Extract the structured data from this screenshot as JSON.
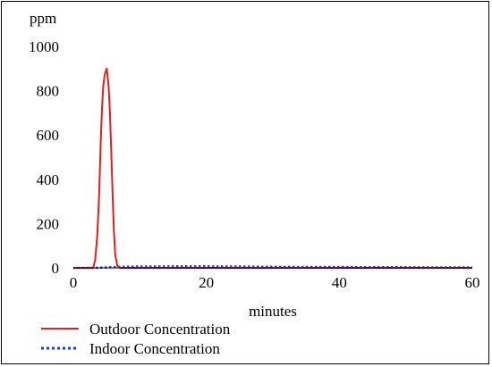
{
  "chart_data": {
    "type": "line",
    "title": "",
    "xlabel": "minutes",
    "ylabel": "ppm",
    "xlim": [
      0,
      60
    ],
    "ylim": [
      0,
      1000
    ],
    "x_ticks": [
      "0",
      "20",
      "40",
      "60"
    ],
    "y_ticks": [
      "0",
      "200",
      "400",
      "600",
      "800",
      "1000"
    ],
    "grid": false,
    "legend_position": "bottom-left",
    "series": [
      {
        "name": "Outdoor Concentration",
        "color": "#e0201b",
        "style": "solid",
        "x": [
          0,
          3,
          3.3,
          3.6,
          3.9,
          4.1,
          4.3,
          4.5,
          4.7,
          4.9,
          5.0,
          5.1,
          5.3,
          5.5,
          5.7,
          5.9,
          6.1,
          6.3,
          6.6,
          7,
          10,
          20,
          30,
          40,
          50,
          60
        ],
        "y": [
          0,
          0,
          40,
          150,
          350,
          560,
          720,
          820,
          870,
          890,
          900,
          880,
          820,
          700,
          520,
          330,
          170,
          60,
          10,
          0,
          0,
          0,
          0,
          0,
          0,
          0
        ]
      },
      {
        "name": "Indoor Concentration",
        "color": "#1f3be0",
        "style": "dotted",
        "x": [
          0,
          3,
          5,
          7,
          10,
          15,
          20,
          25,
          30,
          35,
          40,
          45,
          50,
          55,
          60
        ],
        "y": [
          0,
          0,
          2,
          5,
          6,
          7,
          7,
          6,
          5,
          4,
          4,
          3,
          3,
          2,
          2
        ]
      }
    ]
  }
}
